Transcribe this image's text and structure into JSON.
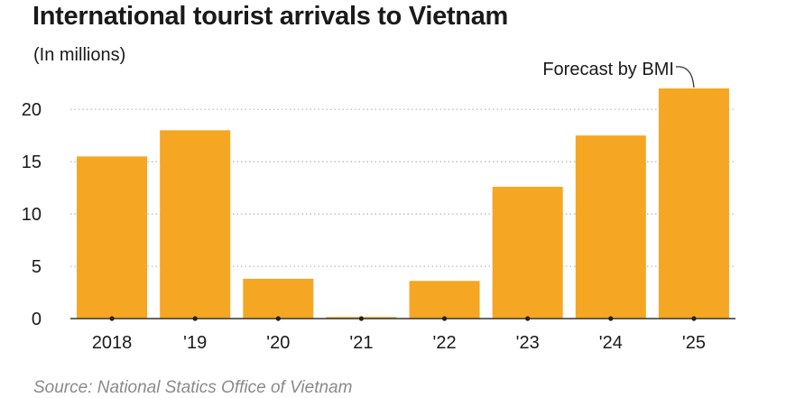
{
  "chart_data": {
    "type": "bar",
    "title": "International tourist arrivals to Vietnam",
    "subtitle": "(In millions)",
    "categories": [
      "2018",
      "'19",
      "'20",
      "'21",
      "'22",
      "'23",
      "'24",
      "'25"
    ],
    "values": [
      15.5,
      18.0,
      3.8,
      0.15,
      3.6,
      12.6,
      17.5,
      22.0
    ],
    "ylim": [
      0,
      22
    ],
    "yticks": [
      0,
      5,
      10,
      15,
      20
    ],
    "grid": true,
    "annotation": {
      "text": "Forecast by BMI",
      "category": "'25"
    },
    "source": "Source: National Statics Office of Vietnam",
    "colors": {
      "bar": "#f5a623",
      "grid": "#b5b5b5",
      "axis": "#333333",
      "text": "#1a1a1a",
      "source": "#8a8a8a"
    }
  }
}
